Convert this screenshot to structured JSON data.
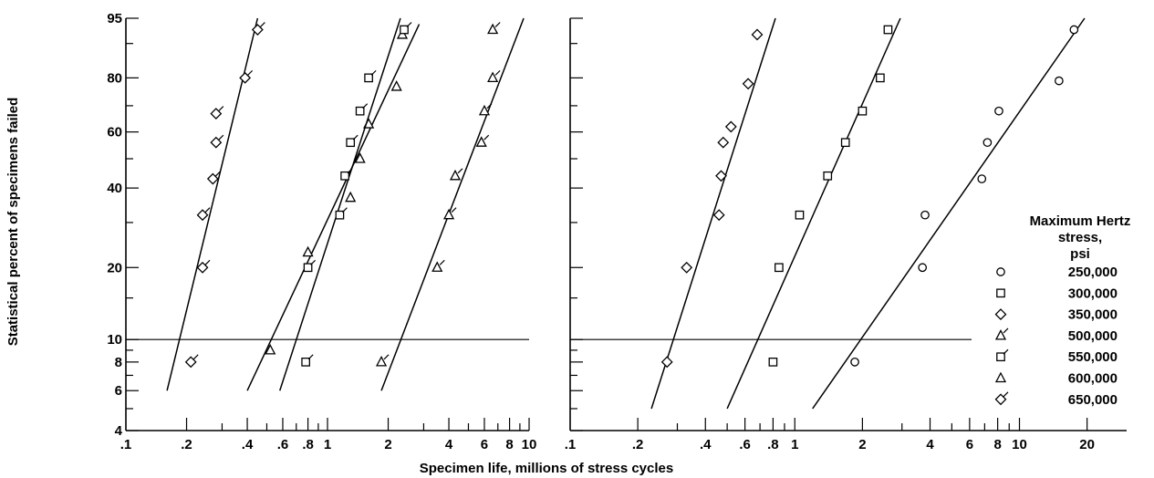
{
  "chart_data": {
    "type": "scatter",
    "xlabel": "Specimen life, millions of stress cycles",
    "ylabel": "Statistical percent of specimens failed",
    "x_scale": "log",
    "y_scale": "weibull",
    "y_ticks": [
      "4",
      "6",
      "8",
      "10",
      "20",
      "40",
      "60",
      "80",
      "95"
    ],
    "legend": {
      "title_lines": [
        "Maximum Hertz",
        "stress,",
        "psi"
      ],
      "placement": "right",
      "entries": [
        {
          "label": "250,000",
          "marker": "circle"
        },
        {
          "label": "300,000",
          "marker": "square"
        },
        {
          "label": "350,000",
          "marker": "diamond"
        },
        {
          "label": "500,000",
          "marker": "triangle-flag"
        },
        {
          "label": "550,000",
          "marker": "square-flag"
        },
        {
          "label": "600,000",
          "marker": "triangle"
        },
        {
          "label": "650,000",
          "marker": "diamond-flag"
        }
      ]
    },
    "panels": [
      {
        "xlim": [
          0.1,
          10
        ],
        "ylim": [
          4,
          95
        ],
        "x_ticks": [
          ".1",
          ".2",
          ".4",
          ".6",
          ".8",
          "1",
          "2",
          "4",
          "6",
          "8",
          "10"
        ],
        "reference_line_percent": 10,
        "series": [
          {
            "name": "650,000",
            "marker": "diamond-flag",
            "points": [
              [
                0.21,
                8
              ],
              [
                0.24,
                20
              ],
              [
                0.24,
                32
              ],
              [
                0.27,
                43
              ],
              [
                0.28,
                56
              ],
              [
                0.28,
                67
              ],
              [
                0.39,
                80
              ],
              [
                0.45,
                93
              ]
            ],
            "fit": [
              [
                0.16,
                6
              ],
              [
                0.45,
                95
              ]
            ]
          },
          {
            "name": "600,000",
            "marker": "triangle",
            "points": [
              [
                0.52,
                9
              ],
              [
                0.8,
                23
              ],
              [
                1.3,
                37
              ],
              [
                1.45,
                50
              ],
              [
                1.6,
                63
              ],
              [
                2.2,
                77
              ],
              [
                2.35,
                92
              ]
            ],
            "fit": [
              [
                0.4,
                6
              ],
              [
                2.85,
                94
              ]
            ]
          },
          {
            "name": "550,000",
            "marker": "square-flag",
            "points": [
              [
                0.78,
                8
              ],
              [
                0.8,
                20
              ],
              [
                1.15,
                32
              ],
              [
                1.22,
                44
              ],
              [
                1.3,
                56
              ],
              [
                1.45,
                68
              ],
              [
                1.6,
                80
              ],
              [
                2.4,
                93
              ]
            ],
            "fit": [
              [
                0.58,
                6
              ],
              [
                2.3,
                95
              ]
            ]
          },
          {
            "name": "500,000",
            "marker": "triangle-flag",
            "points": [
              [
                1.85,
                8
              ],
              [
                3.5,
                20
              ],
              [
                4.0,
                32
              ],
              [
                4.3,
                44
              ],
              [
                5.8,
                56
              ],
              [
                6.0,
                68
              ],
              [
                6.6,
                80
              ],
              [
                6.6,
                93
              ]
            ],
            "fit": [
              [
                1.85,
                6
              ],
              [
                9.4,
                95
              ]
            ]
          }
        ]
      },
      {
        "xlim": [
          0.1,
          30
        ],
        "ylim": [
          4,
          95
        ],
        "x_ticks": [
          ".1",
          ".2",
          ".4",
          ".6",
          ".8",
          "1",
          "2",
          "4",
          "6",
          "8",
          "10",
          "20"
        ],
        "reference_line_percent": 10,
        "series": [
          {
            "name": "350,000",
            "marker": "diamond",
            "points": [
              [
                0.27,
                8
              ],
              [
                0.33,
                20
              ],
              [
                0.46,
                32
              ],
              [
                0.47,
                44
              ],
              [
                0.48,
                56
              ],
              [
                0.52,
                62
              ],
              [
                0.62,
                78
              ],
              [
                0.68,
                92
              ]
            ],
            "fit": [
              [
                0.23,
                5
              ],
              [
                0.82,
                95
              ]
            ]
          },
          {
            "name": "300,000",
            "marker": "square",
            "points": [
              [
                0.8,
                8
              ],
              [
                0.85,
                20
              ],
              [
                1.05,
                32
              ],
              [
                1.4,
                44
              ],
              [
                1.68,
                56
              ],
              [
                2.0,
                68
              ],
              [
                2.4,
                80
              ],
              [
                2.6,
                93
              ]
            ],
            "fit": [
              [
                0.5,
                5
              ],
              [
                2.95,
                95
              ]
            ]
          },
          {
            "name": "250,000",
            "marker": "circle",
            "points": [
              [
                1.85,
                8
              ],
              [
                3.7,
                20
              ],
              [
                3.8,
                32
              ],
              [
                6.8,
                43
              ],
              [
                7.2,
                56
              ],
              [
                8.1,
                68
              ],
              [
                15.0,
                79
              ],
              [
                17.5,
                93
              ]
            ],
            "fit": [
              [
                1.2,
                5
              ],
              [
                19.5,
                95
              ]
            ]
          }
        ]
      }
    ]
  }
}
